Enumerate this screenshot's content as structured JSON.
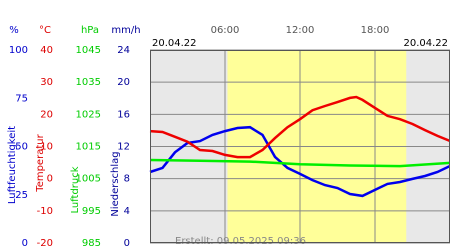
{
  "chart_data": {
    "type": "line",
    "date_left": "20.04.22",
    "date_right": "20.04.22",
    "footer": "Erstellt: 09.05.2025 09:36",
    "xlim": [
      0,
      24
    ],
    "xticks": [
      {
        "value": 6,
        "label": "06:00"
      },
      {
        "value": 12,
        "label": "12:00"
      },
      {
        "value": 18,
        "label": "18:00"
      }
    ],
    "daylight": [
      6.2,
      20.5
    ],
    "grid": true,
    "axes": [
      {
        "unit": "%",
        "label": "Luftfeuchtigkeit",
        "color": "#0000cc",
        "lim": [
          0,
          100
        ],
        "ticks": [
          0,
          25,
          50,
          75,
          100
        ]
      },
      {
        "unit": "°C",
        "label": "Temperatur",
        "color": "#dd0000",
        "lim": [
          -20,
          40
        ],
        "ticks": [
          -20,
          -10,
          0,
          10,
          20,
          30,
          40
        ]
      },
      {
        "unit": "hPa",
        "label": "Luftdruck",
        "color": "#00cc00",
        "lim": [
          985,
          1045
        ],
        "ticks": [
          985,
          995,
          1005,
          1015,
          1025,
          1035,
          1045
        ]
      },
      {
        "unit": "mm/h",
        "label": "Niederschlag",
        "color": "#000099",
        "lim": [
          0,
          24
        ],
        "ticks": [
          0,
          4,
          8,
          12,
          16,
          20,
          24
        ]
      }
    ],
    "series": [
      {
        "axis": 0,
        "color": "#0000ee",
        "x": [
          0,
          1,
          2,
          3,
          4,
          5,
          6,
          7,
          8,
          9,
          10,
          11,
          12,
          13,
          14,
          15,
          16,
          17,
          18,
          19,
          20,
          21,
          22,
          23,
          24
        ],
        "values": [
          36.8,
          38.9,
          47,
          51.8,
          52.8,
          56,
          58,
          59.6,
          60,
          56,
          44.6,
          38.9,
          35.8,
          32.6,
          30,
          28.5,
          25.4,
          24.4,
          27.5,
          30.6,
          31.6,
          33.2,
          34.7,
          36.8,
          39.9
        ]
      },
      {
        "axis": 1,
        "color": "#ee0000",
        "x": [
          0,
          1,
          2,
          3,
          4,
          5,
          6,
          7,
          8,
          9,
          10,
          11,
          12,
          13,
          14,
          15,
          16,
          16.5,
          17,
          18,
          19,
          20,
          21,
          22,
          23,
          24
        ],
        "values": [
          14.8,
          14.5,
          13,
          11.5,
          8.9,
          8.6,
          7.4,
          6.7,
          6.7,
          8.9,
          12.6,
          16,
          18.5,
          21.3,
          22.6,
          23.8,
          25.1,
          25.4,
          24.5,
          22,
          19.5,
          18.5,
          17,
          15.1,
          13.3,
          11.7
        ]
      },
      {
        "axis": 2,
        "color": "#00ee00",
        "x": [
          0,
          4,
          8,
          12,
          16,
          20,
          24
        ],
        "values": [
          1010.8,
          1010.6,
          1010.3,
          1009.5,
          1009.1,
          1008.9,
          1009.9
        ]
      }
    ]
  }
}
